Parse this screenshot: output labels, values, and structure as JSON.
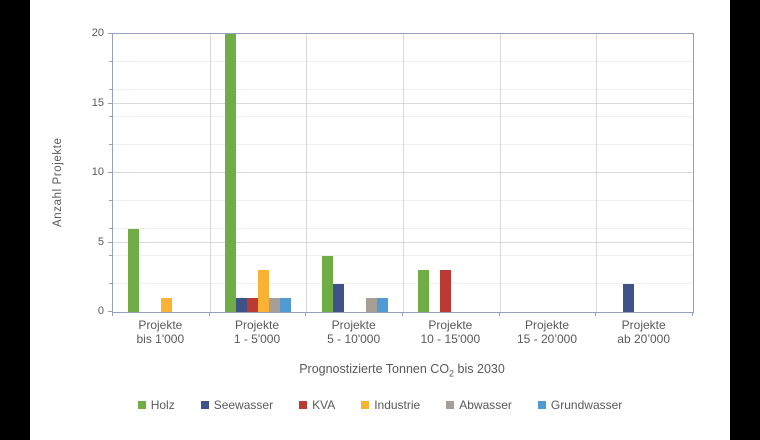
{
  "chart_data": {
    "type": "bar",
    "title": "",
    "categories": [
      [
        "Projekte",
        "bis 1'000"
      ],
      [
        "Projekte",
        "1 - 5'000"
      ],
      [
        "Projekte",
        "5 - 10'000"
      ],
      [
        "Projekte",
        "10 - 15'000"
      ],
      [
        "Projekte",
        "15 - 20’000"
      ],
      [
        "Projekte",
        "ab 20’000"
      ]
    ],
    "series": [
      {
        "name": "Holz",
        "color": "#70ad47",
        "values": [
          6,
          20,
          4,
          3,
          0,
          0
        ]
      },
      {
        "name": "Seewasser",
        "color": "#3f5387",
        "values": [
          0,
          1,
          2,
          0,
          0,
          2
        ]
      },
      {
        "name": "KVA",
        "color": "#bb3a31",
        "values": [
          0,
          1,
          0,
          3,
          0,
          0
        ]
      },
      {
        "name": "Industrie",
        "color": "#f9b233",
        "values": [
          1,
          3,
          0,
          0,
          0,
          0
        ]
      },
      {
        "name": "Abwasser",
        "color": "#a79f96",
        "values": [
          0,
          1,
          1,
          0,
          0,
          0
        ]
      },
      {
        "name": "Grundwasser",
        "color": "#4f9cd5",
        "values": [
          0,
          1,
          1,
          0,
          0,
          0
        ]
      }
    ],
    "ylabel": "Anzahl Projekte",
    "xlabel_pre": "Prognostizierte Tonnen CO",
    "xlabel_sub": "2",
    "xlabel_post": " bis 2030",
    "ylim": [
      0,
      20
    ],
    "y_major_ticks": [
      0,
      5,
      10,
      15,
      20
    ],
    "y_minor_step": 2,
    "grid": true,
    "legend_position": "bottom"
  }
}
